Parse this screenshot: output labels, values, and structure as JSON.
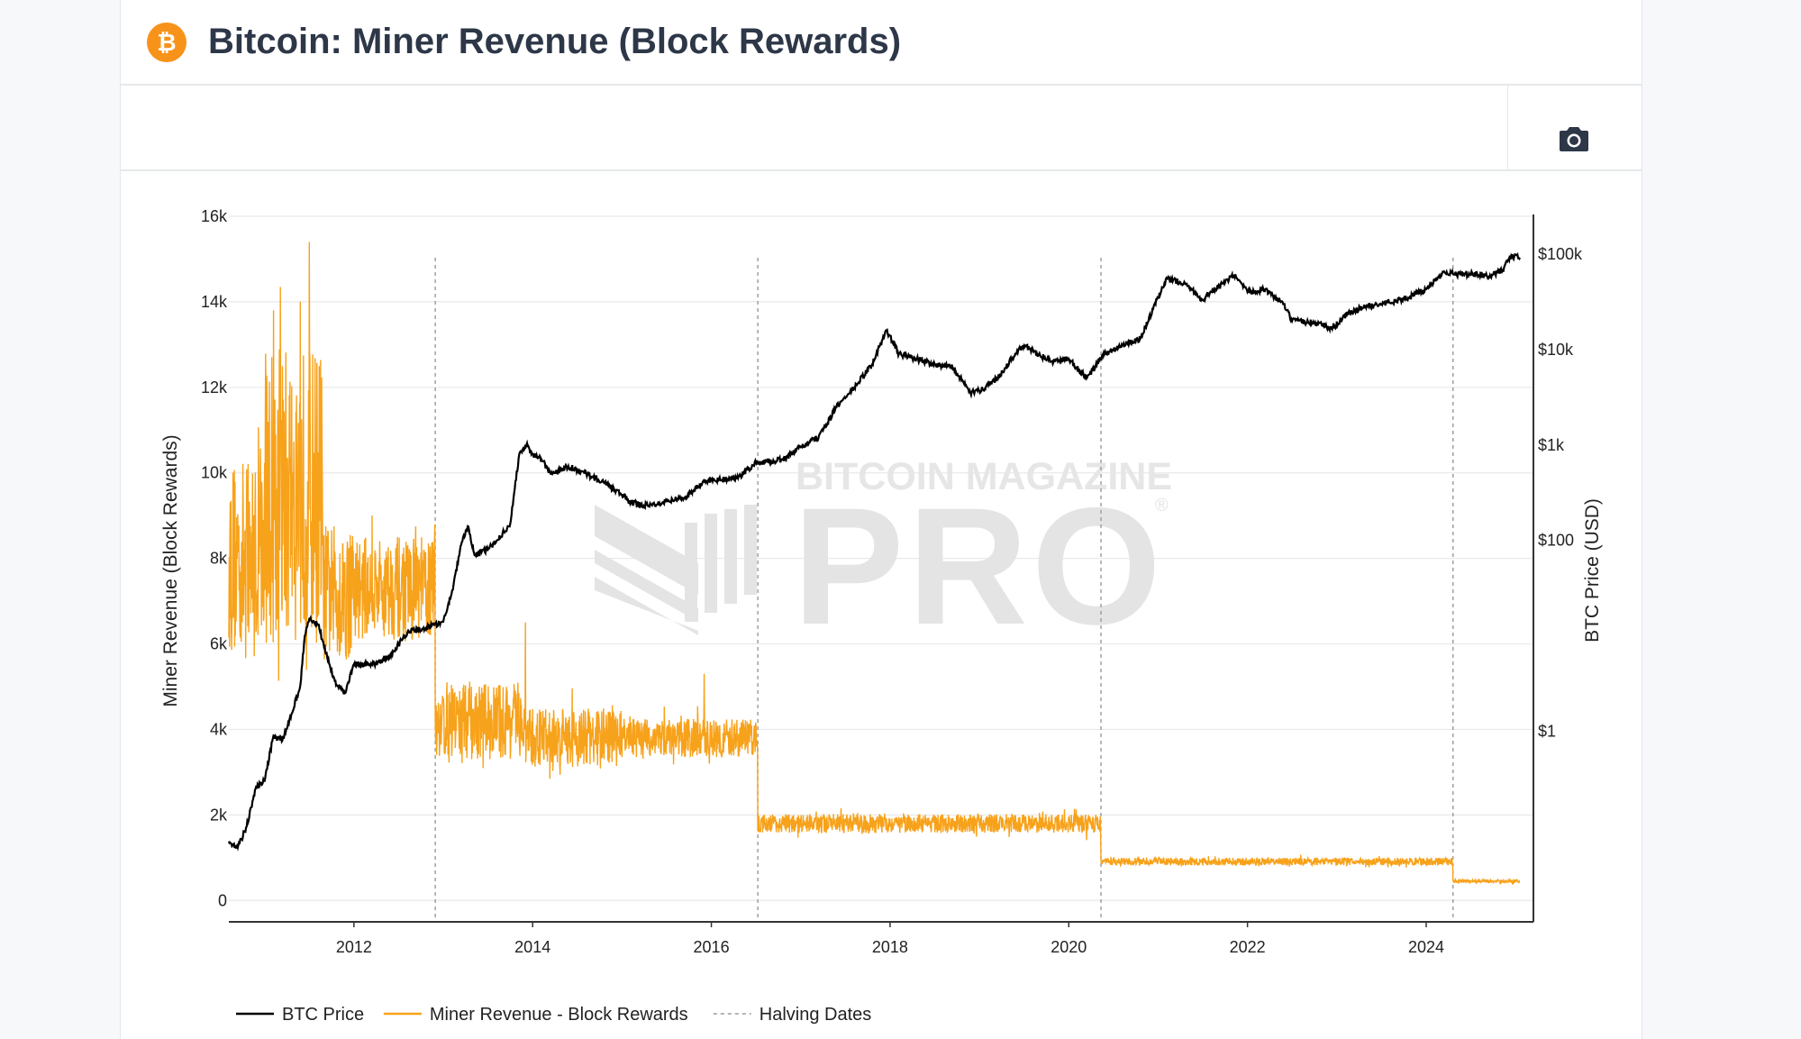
{
  "header": {
    "title": "Bitcoin: Miner Revenue (Block Rewards)",
    "logo_icon": "bitcoin-icon",
    "logo_glyph": "₿",
    "brand_color": "#f7931a"
  },
  "toolbar": {
    "camera_icon": "camera-icon"
  },
  "watermark": {
    "line1": "BITCOIN MAGAZINE",
    "line2": "PRO",
    "reg": "®"
  },
  "chart_data": {
    "type": "line",
    "title": "",
    "x_axis": {
      "range": [
        2010.6,
        2025.2
      ],
      "ticks": [
        2012,
        2014,
        2016,
        2018,
        2020,
        2022,
        2024
      ],
      "tick_labels": [
        "2012",
        "2014",
        "2016",
        "2018",
        "2020",
        "2022",
        "2024"
      ]
    },
    "y_left": {
      "label": "Miner Revenue (Block Rewards)",
      "range": [
        -500,
        16000
      ],
      "ticks": [
        0,
        2000,
        4000,
        6000,
        8000,
        10000,
        12000,
        14000,
        16000
      ],
      "tick_labels": [
        "0",
        "2k",
        "4k",
        "6k",
        "8k",
        "10k",
        "12k",
        "14k",
        "16k"
      ]
    },
    "y_right": {
      "label": "BTC Price (USD)",
      "scale": "log",
      "range": [
        0.01,
        250000
      ],
      "ticks": [
        1,
        100,
        1000,
        10000,
        100000
      ],
      "tick_labels": [
        "$1",
        "$100",
        "$1k",
        "$10k",
        "$100k"
      ]
    },
    "grid": true,
    "legend_position": "bottom-left",
    "halving_dates": [
      2012.91,
      2016.52,
      2020.36,
      2024.3
    ],
    "series": [
      {
        "name": "BTC Price",
        "axis": "right",
        "color": "#000000",
        "x": [
          2010.6,
          2010.7,
          2010.8,
          2010.9,
          2011.0,
          2011.1,
          2011.2,
          2011.3,
          2011.4,
          2011.45,
          2011.5,
          2011.6,
          2011.7,
          2011.8,
          2011.9,
          2012.0,
          2012.2,
          2012.4,
          2012.6,
          2012.8,
          2012.9,
          2013.0,
          2013.1,
          2013.2,
          2013.28,
          2013.35,
          2013.5,
          2013.6,
          2013.75,
          2013.85,
          2013.93,
          2014.0,
          2014.1,
          2014.2,
          2014.4,
          2014.6,
          2014.8,
          2015.0,
          2015.1,
          2015.3,
          2015.5,
          2015.7,
          2015.9,
          2016.0,
          2016.3,
          2016.5,
          2016.8,
          2017.0,
          2017.2,
          2017.4,
          2017.6,
          2017.8,
          2017.96,
          2018.1,
          2018.3,
          2018.5,
          2018.7,
          2018.9,
          2019.0,
          2019.2,
          2019.4,
          2019.5,
          2019.8,
          2020.0,
          2020.2,
          2020.4,
          2020.6,
          2020.8,
          2021.0,
          2021.1,
          2021.3,
          2021.5,
          2021.6,
          2021.85,
          2022.0,
          2022.2,
          2022.4,
          2022.5,
          2022.8,
          2022.95,
          2023.1,
          2023.3,
          2023.5,
          2023.8,
          2024.0,
          2024.2,
          2024.3,
          2024.5,
          2024.7,
          2024.85,
          2024.95,
          2025.05
        ],
        "y": [
          0.07,
          0.06,
          0.1,
          0.25,
          0.3,
          0.9,
          0.8,
          1.5,
          3,
          10,
          15,
          13,
          6,
          3,
          2.5,
          5,
          5,
          6,
          11,
          12,
          13,
          14,
          30,
          90,
          140,
          70,
          80,
          100,
          150,
          800,
          1000,
          800,
          700,
          500,
          600,
          500,
          400,
          300,
          250,
          230,
          260,
          280,
          400,
          430,
          450,
          650,
          700,
          950,
          1200,
          2500,
          4000,
          7000,
          16000,
          9000,
          8000,
          7000,
          6500,
          3500,
          3700,
          5000,
          9000,
          11000,
          7500,
          8000,
          5000,
          9000,
          11000,
          13000,
          35000,
          55000,
          50000,
          33000,
          40000,
          60000,
          40000,
          43000,
          30000,
          20000,
          19000,
          16500,
          23000,
          28000,
          30000,
          35000,
          43000,
          66000,
          62000,
          62000,
          58000,
          68000,
          95000,
          92000
        ]
      },
      {
        "name": "Miner Revenue - Block Rewards",
        "axis": "left",
        "color": "#f7a21b",
        "segments": [
          {
            "from": 2010.6,
            "to": 2011.0,
            "base": 8000,
            "noise": 2300
          },
          {
            "from": 2011.0,
            "to": 2011.65,
            "base": 9500,
            "noise": 3500
          },
          {
            "from": 2011.65,
            "to": 2012.0,
            "base": 7200,
            "noise": 1600
          },
          {
            "from": 2012.0,
            "to": 2012.91,
            "base": 7300,
            "noise": 1200
          },
          {
            "from": 2012.91,
            "to": 2013.9,
            "base": 4200,
            "noise": 900
          },
          {
            "from": 2013.9,
            "to": 2015.0,
            "base": 3800,
            "noise": 700
          },
          {
            "from": 2015.0,
            "to": 2016.52,
            "base": 3800,
            "noise": 450
          },
          {
            "from": 2016.52,
            "to": 2020.36,
            "base": 1800,
            "noise": 220
          },
          {
            "from": 2020.36,
            "to": 2024.3,
            "base": 910,
            "noise": 90
          },
          {
            "from": 2024.3,
            "to": 2025.05,
            "base": 450,
            "noise": 40
          }
        ],
        "peaks": [
          {
            "x": 2011.1,
            "y": 13800
          },
          {
            "x": 2011.5,
            "y": 15400
          },
          {
            "x": 2011.4,
            "y": 14000
          },
          {
            "x": 2013.92,
            "y": 6500
          },
          {
            "x": 2015.92,
            "y": 5300
          }
        ]
      },
      {
        "name": "Halving Dates",
        "axis": "left",
        "color": "#9a9a9a"
      }
    ]
  }
}
